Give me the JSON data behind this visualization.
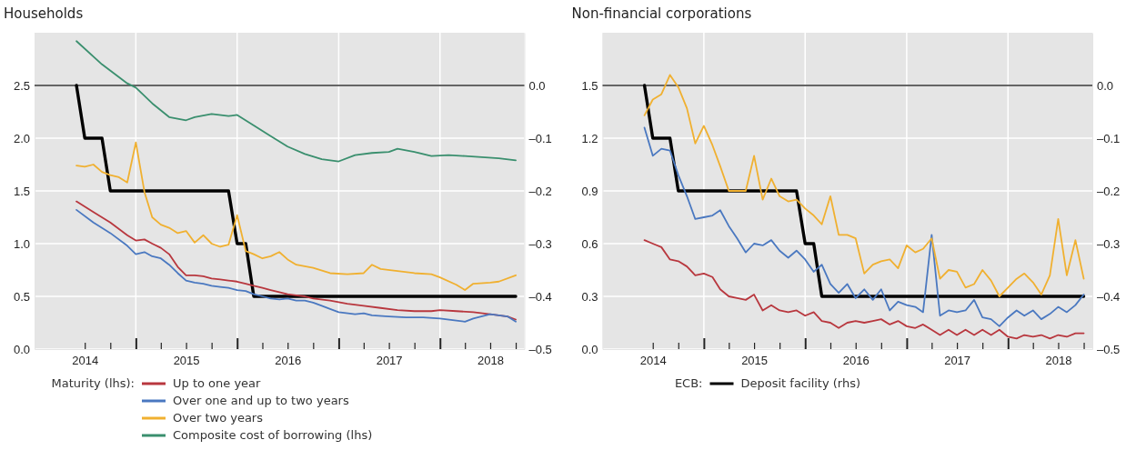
{
  "chart_data": [
    {
      "type": "line",
      "title": "Households",
      "legend_title": "Maturity (lhs):",
      "legend": "bottom",
      "grid": true,
      "xlim": [
        "2014-01",
        "2018-11"
      ],
      "xticks": [
        {
          "value": "2014-07",
          "label": "2014"
        },
        {
          "value": "2014-10",
          "label": null
        },
        {
          "value": "2015-01",
          "label": null
        },
        {
          "value": "2015-04",
          "label": null
        },
        {
          "value": "2015-07",
          "label": "2015"
        },
        {
          "value": "2015-10",
          "label": null
        },
        {
          "value": "2016-01",
          "label": null
        },
        {
          "value": "2016-04",
          "label": null
        },
        {
          "value": "2016-07",
          "label": "2016"
        },
        {
          "value": "2016-10",
          "label": null
        },
        {
          "value": "2017-01",
          "label": null
        },
        {
          "value": "2017-04",
          "label": null
        },
        {
          "value": "2017-07",
          "label": "2017"
        },
        {
          "value": "2017-10",
          "label": null
        },
        {
          "value": "2018-01",
          "label": null
        },
        {
          "value": "2018-04",
          "label": null
        },
        {
          "value": "2018-07",
          "label": "2018"
        },
        {
          "value": "2018-10",
          "label": null
        }
      ],
      "ylim": [
        0,
        3
      ],
      "yticks": [
        {
          "value": 0,
          "label": "0.0"
        },
        {
          "value": 0.5,
          "label": "0.5"
        },
        {
          "value": 1,
          "label": "1.0"
        },
        {
          "value": 1.5,
          "label": "1.5"
        },
        {
          "value": 2,
          "label": "2.0"
        },
        {
          "value": 2.5,
          "label": "2.5"
        }
      ],
      "y2lim": [
        -0.5,
        0.1
      ],
      "y2ticks": [
        {
          "value": -0.5,
          "label": "–0.5"
        },
        {
          "value": -0.4,
          "label": "–0.4"
        },
        {
          "value": -0.3,
          "label": "–0.3"
        },
        {
          "value": -0.2,
          "label": "–0.2"
        },
        {
          "value": -0.1,
          "label": "–0.1"
        },
        {
          "value": 0,
          "label": "0.0"
        }
      ],
      "ref_lines": [
        {
          "axis": "y2",
          "value": 0,
          "color": "#333333"
        }
      ],
      "series": [
        {
          "name": "Up to one year",
          "color": "#b8373e",
          "x": [
            "2014-06",
            "2014-08",
            "2014-10",
            "2014-12",
            "2015-01",
            "2015-02",
            "2015-03",
            "2015-04",
            "2015-05",
            "2015-06",
            "2015-07",
            "2015-08",
            "2015-09",
            "2015-10",
            "2015-11",
            "2015-12",
            "2016-01",
            "2016-02",
            "2016-03",
            "2016-04",
            "2016-05",
            "2016-06",
            "2016-07",
            "2016-08",
            "2016-09",
            "2016-10",
            "2016-12",
            "2017-02",
            "2017-04",
            "2017-06",
            "2017-08",
            "2017-10",
            "2017-12",
            "2018-01",
            "2018-03",
            "2018-05",
            "2018-07",
            "2018-09",
            "2018-10"
          ],
          "values": [
            1.4,
            1.3,
            1.2,
            1.08,
            1.03,
            1.04,
            1.0,
            0.96,
            0.9,
            0.78,
            0.7,
            0.7,
            0.69,
            0.67,
            0.66,
            0.65,
            0.64,
            0.62,
            0.6,
            0.58,
            0.56,
            0.54,
            0.52,
            0.51,
            0.5,
            0.48,
            0.46,
            0.43,
            0.41,
            0.39,
            0.37,
            0.36,
            0.36,
            0.37,
            0.36,
            0.35,
            0.33,
            0.31,
            0.28
          ]
        },
        {
          "name": "Over one and up to two years",
          "color": "#4a78c0",
          "x": [
            "2014-06",
            "2014-08",
            "2014-10",
            "2014-12",
            "2015-01",
            "2015-02",
            "2015-03",
            "2015-04",
            "2015-05",
            "2015-06",
            "2015-07",
            "2015-08",
            "2015-09",
            "2015-10",
            "2015-11",
            "2015-12",
            "2016-01",
            "2016-02",
            "2016-03",
            "2016-04",
            "2016-05",
            "2016-06",
            "2016-07",
            "2016-08",
            "2016-09",
            "2016-10",
            "2016-11",
            "2016-12",
            "2017-01",
            "2017-03",
            "2017-04",
            "2017-05",
            "2017-07",
            "2017-09",
            "2017-11",
            "2018-01",
            "2018-03",
            "2018-04",
            "2018-05",
            "2018-07",
            "2018-09",
            "2018-10"
          ],
          "values": [
            1.32,
            1.2,
            1.1,
            0.98,
            0.9,
            0.92,
            0.88,
            0.86,
            0.8,
            0.72,
            0.65,
            0.63,
            0.62,
            0.6,
            0.59,
            0.58,
            0.56,
            0.55,
            0.52,
            0.5,
            0.48,
            0.47,
            0.48,
            0.46,
            0.46,
            0.44,
            0.41,
            0.38,
            0.35,
            0.33,
            0.34,
            0.32,
            0.31,
            0.3,
            0.3,
            0.29,
            0.27,
            0.26,
            0.29,
            0.33,
            0.31,
            0.26
          ]
        },
        {
          "name": "Over two years",
          "color": "#f0b030",
          "x": [
            "2014-06",
            "2014-07",
            "2014-08",
            "2014-09",
            "2014-10",
            "2014-11",
            "2014-12",
            "2015-01",
            "2015-02",
            "2015-03",
            "2015-04",
            "2015-05",
            "2015-06",
            "2015-07",
            "2015-08",
            "2015-09",
            "2015-10",
            "2015-11",
            "2015-12",
            "2016-01",
            "2016-02",
            "2016-03",
            "2016-04",
            "2016-05",
            "2016-06",
            "2016-07",
            "2016-08",
            "2016-10",
            "2016-12",
            "2017-02",
            "2017-04",
            "2017-05",
            "2017-06",
            "2017-08",
            "2017-10",
            "2017-12",
            "2018-01",
            "2018-03",
            "2018-04",
            "2018-05",
            "2018-07",
            "2018-08",
            "2018-10"
          ],
          "values": [
            1.74,
            1.73,
            1.75,
            1.68,
            1.65,
            1.63,
            1.58,
            1.96,
            1.49,
            1.25,
            1.18,
            1.15,
            1.1,
            1.12,
            1.01,
            1.08,
            1.0,
            0.97,
            0.99,
            1.27,
            0.93,
            0.9,
            0.86,
            0.88,
            0.92,
            0.85,
            0.8,
            0.77,
            0.72,
            0.71,
            0.72,
            0.8,
            0.76,
            0.74,
            0.72,
            0.71,
            0.68,
            0.61,
            0.56,
            0.62,
            0.63,
            0.64,
            0.7
          ]
        },
        {
          "axis": "y2",
          "color": "#000000",
          "x": [
            "2014-06",
            "2014-07",
            "2014-09",
            "2014-10",
            "2015-12",
            "2016-01",
            "2016-02",
            "2016-03",
            "2018-10"
          ],
          "values": [
            0,
            -0.1,
            -0.1,
            -0.2,
            -0.2,
            -0.3,
            -0.3,
            -0.4,
            -0.4
          ]
        },
        {
          "name": "Composite cost of borrowing (lhs)",
          "color": "#3a8f6e",
          "x": [
            "2014-06",
            "2014-09",
            "2014-12",
            "2015-01",
            "2015-03",
            "2015-05",
            "2015-07",
            "2015-08",
            "2015-10",
            "2015-12",
            "2016-01",
            "2016-03",
            "2016-05",
            "2016-07",
            "2016-09",
            "2016-11",
            "2017-01",
            "2017-03",
            "2017-05",
            "2017-07",
            "2017-08",
            "2017-10",
            "2017-12",
            "2018-02",
            "2018-04",
            "2018-06",
            "2018-08",
            "2018-10"
          ],
          "values": [
            2.92,
            2.7,
            2.52,
            2.48,
            2.33,
            2.2,
            2.17,
            2.2,
            2.23,
            2.21,
            2.22,
            2.12,
            2.02,
            1.92,
            1.85,
            1.8,
            1.78,
            1.84,
            1.86,
            1.87,
            1.9,
            1.87,
            1.83,
            1.84,
            1.83,
            1.82,
            1.81,
            1.79
          ]
        }
      ]
    },
    {
      "type": "line",
      "title": "Non-financial corporations",
      "legend_title": "ECB:",
      "legend": "bottom",
      "grid": true,
      "xlim": [
        "2014-01",
        "2018-11"
      ],
      "xticks": [
        {
          "value": "2014-07",
          "label": "2014"
        },
        {
          "value": "2014-10",
          "label": null
        },
        {
          "value": "2015-01",
          "label": null
        },
        {
          "value": "2015-04",
          "label": null
        },
        {
          "value": "2015-07",
          "label": "2015"
        },
        {
          "value": "2015-10",
          "label": null
        },
        {
          "value": "2016-01",
          "label": null
        },
        {
          "value": "2016-04",
          "label": null
        },
        {
          "value": "2016-07",
          "label": "2016"
        },
        {
          "value": "2016-10",
          "label": null
        },
        {
          "value": "2017-01",
          "label": null
        },
        {
          "value": "2017-04",
          "label": null
        },
        {
          "value": "2017-07",
          "label": "2017"
        },
        {
          "value": "2017-10",
          "label": null
        },
        {
          "value": "2018-01",
          "label": null
        },
        {
          "value": "2018-04",
          "label": null
        },
        {
          "value": "2018-07",
          "label": "2018"
        },
        {
          "value": "2018-10",
          "label": null
        }
      ],
      "ylim": [
        0,
        1.8
      ],
      "yticks": [
        {
          "value": 0,
          "label": "0.0"
        },
        {
          "value": 0.3,
          "label": "0.3"
        },
        {
          "value": 0.6,
          "label": "0.6"
        },
        {
          "value": 0.9,
          "label": "0.9"
        },
        {
          "value": 1.2,
          "label": "1.2"
        },
        {
          "value": 1.5,
          "label": "1.5"
        }
      ],
      "y2lim": [
        -0.5,
        0.1
      ],
      "y2ticks": [
        {
          "value": -0.5,
          "label": "–0.5"
        },
        {
          "value": -0.4,
          "label": "–0.4"
        },
        {
          "value": -0.3,
          "label": "–0.3"
        },
        {
          "value": -0.2,
          "label": "–0.2"
        },
        {
          "value": -0.1,
          "label": "–0.1"
        },
        {
          "value": 0,
          "label": "0.0"
        }
      ],
      "ref_lines": [
        {
          "axis": "y2",
          "value": 0,
          "color": "#333333"
        }
      ],
      "x": [
        "2014-06",
        "2014-07",
        "2014-08",
        "2014-09",
        "2014-10",
        "2014-11",
        "2014-12",
        "2015-01",
        "2015-02",
        "2015-03",
        "2015-04",
        "2015-05",
        "2015-06",
        "2015-07",
        "2015-08",
        "2015-09",
        "2015-10",
        "2015-11",
        "2015-12",
        "2016-01",
        "2016-02",
        "2016-03",
        "2016-04",
        "2016-05",
        "2016-06",
        "2016-07",
        "2016-08",
        "2016-09",
        "2016-10",
        "2016-11",
        "2016-12",
        "2017-01",
        "2017-02",
        "2017-03",
        "2017-04",
        "2017-05",
        "2017-06",
        "2017-07",
        "2017-08",
        "2017-09",
        "2017-10",
        "2017-11",
        "2017-12",
        "2018-01",
        "2018-02",
        "2018-03",
        "2018-04",
        "2018-05",
        "2018-06",
        "2018-07",
        "2018-08",
        "2018-09",
        "2018-10"
      ],
      "series": [
        {
          "color": "#b8373e",
          "values": [
            0.62,
            0.6,
            0.58,
            0.51,
            0.5,
            0.47,
            0.42,
            0.43,
            0.41,
            0.34,
            0.3,
            0.29,
            0.28,
            0.31,
            0.22,
            0.25,
            0.22,
            0.21,
            0.22,
            0.19,
            0.21,
            0.16,
            0.15,
            0.12,
            0.15,
            0.16,
            0.15,
            0.16,
            0.17,
            0.14,
            0.16,
            0.13,
            0.12,
            0.14,
            0.11,
            0.08,
            0.11,
            0.08,
            0.11,
            0.08,
            0.11,
            0.08,
            0.11,
            0.07,
            0.06,
            0.08,
            0.07,
            0.08,
            0.06,
            0.08,
            0.07,
            0.09,
            0.09
          ]
        },
        {
          "color": "#4a78c0",
          "values": [
            1.26,
            1.1,
            1.14,
            1.13,
            0.99,
            0.87,
            0.74,
            0.75,
            0.76,
            0.79,
            0.7,
            0.63,
            0.55,
            0.6,
            0.59,
            0.62,
            0.56,
            0.52,
            0.56,
            0.51,
            0.44,
            0.48,
            0.37,
            0.32,
            0.37,
            0.29,
            0.34,
            0.28,
            0.34,
            0.22,
            0.27,
            0.25,
            0.24,
            0.21,
            0.65,
            0.19,
            0.22,
            0.21,
            0.22,
            0.28,
            0.18,
            0.17,
            0.13,
            0.18,
            0.22,
            0.19,
            0.22,
            0.17,
            0.2,
            0.24,
            0.21,
            0.25,
            0.31
          ]
        },
        {
          "color": "#f0b030",
          "values": [
            1.33,
            1.42,
            1.45,
            1.56,
            1.49,
            1.37,
            1.17,
            1.27,
            1.16,
            1.04,
            0.9,
            0.9,
            0.9,
            1.1,
            0.85,
            0.97,
            0.87,
            0.84,
            0.85,
            0.8,
            0.76,
            0.71,
            0.87,
            0.65,
            0.65,
            0.63,
            0.43,
            0.48,
            0.5,
            0.51,
            0.46,
            0.59,
            0.55,
            0.57,
            0.63,
            0.4,
            0.45,
            0.44,
            0.35,
            0.37,
            0.45,
            0.39,
            0.3,
            0.35,
            0.4,
            0.43,
            0.38,
            0.31,
            0.42,
            0.74,
            0.42,
            0.62,
            0.4
          ]
        },
        {
          "name": "Deposit facility (rhs)",
          "axis": "y2",
          "color": "#000000",
          "x": [
            "2014-06",
            "2014-07",
            "2014-09",
            "2014-10",
            "2015-12",
            "2016-01",
            "2016-02",
            "2016-03",
            "2018-10"
          ],
          "values": [
            0,
            -0.1,
            -0.1,
            -0.2,
            -0.2,
            -0.3,
            -0.3,
            -0.4,
            -0.4
          ]
        }
      ]
    }
  ]
}
